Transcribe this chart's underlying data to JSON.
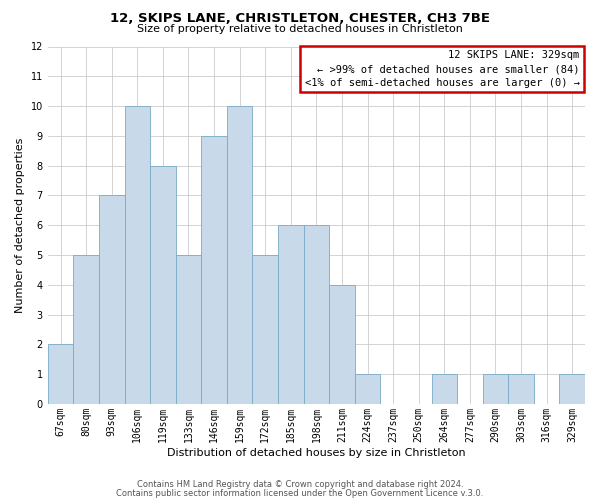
{
  "title": "12, SKIPS LANE, CHRISTLETON, CHESTER, CH3 7BE",
  "subtitle": "Size of property relative to detached houses in Christleton",
  "xlabel": "Distribution of detached houses by size in Christleton",
  "ylabel": "Number of detached properties",
  "bar_color": "#c8daea",
  "bar_edge_color": "#7aaac8",
  "grid_color": "#cccccc",
  "categories": [
    "67sqm",
    "80sqm",
    "93sqm",
    "106sqm",
    "119sqm",
    "133sqm",
    "146sqm",
    "159sqm",
    "172sqm",
    "185sqm",
    "198sqm",
    "211sqm",
    "224sqm",
    "237sqm",
    "250sqm",
    "264sqm",
    "277sqm",
    "290sqm",
    "303sqm",
    "316sqm",
    "329sqm"
  ],
  "values": [
    2,
    5,
    7,
    10,
    8,
    5,
    9,
    10,
    5,
    6,
    6,
    4,
    1,
    0,
    0,
    1,
    0,
    1,
    1,
    0,
    1
  ],
  "ylim": [
    0,
    12
  ],
  "yticks": [
    0,
    1,
    2,
    3,
    4,
    5,
    6,
    7,
    8,
    9,
    10,
    11,
    12
  ],
  "legend_title": "12 SKIPS LANE: 329sqm",
  "legend_line1": "← >99% of detached houses are smaller (84)",
  "legend_line2": "<1% of semi-detached houses are larger (0) →",
  "legend_box_color": "#ffffff",
  "legend_box_edge_color": "#cc0000",
  "footer1": "Contains HM Land Registry data © Crown copyright and database right 2024.",
  "footer2": "Contains public sector information licensed under the Open Government Licence v.3.0.",
  "background_color": "#ffffff",
  "title_fontsize": 9.5,
  "subtitle_fontsize": 8,
  "axis_label_fontsize": 8,
  "tick_fontsize": 7,
  "legend_fontsize": 7.5,
  "footer_fontsize": 6
}
